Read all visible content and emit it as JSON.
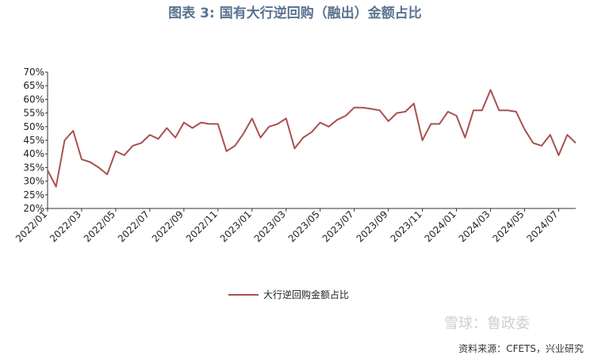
{
  "chart_data": {
    "type": "line",
    "title": "图表 3:   国有大行逆回购（融出）金额占比",
    "source": "资料来源：CFETS，兴业研究",
    "watermark": "雪球：鲁政委",
    "categories": [
      "2022/01",
      null,
      null,
      null,
      "2022/03",
      null,
      null,
      null,
      "2022/05",
      null,
      null,
      null,
      "2022/07",
      null,
      null,
      null,
      "2022/09",
      null,
      null,
      null,
      "2022/11",
      null,
      null,
      null,
      "2023/01",
      null,
      null,
      null,
      "2023/03",
      null,
      null,
      null,
      "2023/05",
      null,
      null,
      null,
      "2023/07",
      null,
      null,
      null,
      "2023/09",
      null,
      null,
      null,
      "2023/11",
      null,
      null,
      null,
      "2024/01",
      null,
      null,
      null,
      "2024/03",
      null,
      null,
      null,
      "2024/05",
      null,
      null,
      null,
      "2024/07",
      null,
      null
    ],
    "series": [
      {
        "name": "大行逆回购金额占比",
        "color": "#a9514f",
        "values": [
          34,
          28,
          45,
          48.5,
          38,
          37,
          35,
          32.5,
          41,
          39.5,
          43,
          44,
          47,
          45.5,
          49.5,
          46,
          51.5,
          49.5,
          51.5,
          51,
          51,
          41,
          43,
          47.5,
          53,
          46,
          50,
          51,
          53,
          42,
          46,
          48,
          51.5,
          50,
          52.5,
          54,
          57,
          57,
          56.5,
          56,
          52,
          55,
          55.5,
          58.5,
          45,
          51,
          51,
          55.5,
          54,
          46,
          56,
          56,
          63.5,
          56,
          56,
          55.5,
          49,
          44,
          43,
          47,
          39.5,
          47,
          44
        ]
      }
    ],
    "ylim": [
      20,
      70
    ],
    "yticks": [
      {
        "value": 20,
        "label": "20%"
      },
      {
        "value": 25,
        "label": "25%"
      },
      {
        "value": 30,
        "label": "30%"
      },
      {
        "value": 35,
        "label": "35%"
      },
      {
        "value": 40,
        "label": "40%"
      },
      {
        "value": 45,
        "label": "45%"
      },
      {
        "value": 50,
        "label": "50%"
      },
      {
        "value": 55,
        "label": "55%"
      },
      {
        "value": 60,
        "label": "60%"
      },
      {
        "value": 65,
        "label": "65%"
      },
      {
        "value": 70,
        "label": "70%"
      }
    ],
    "legend": "bottom"
  }
}
